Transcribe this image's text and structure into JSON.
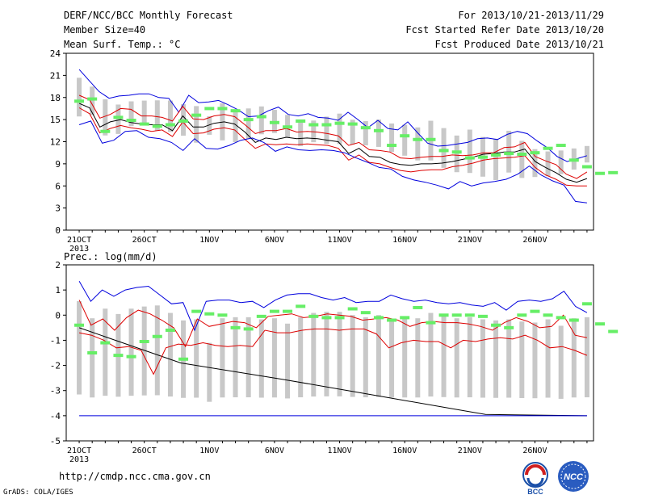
{
  "header": {
    "title": "DERF/NCC/BCC Monthly Forecast",
    "member_size": "Member Size=40",
    "variable": "Mean Surf. Temp.: °C",
    "period": "For 2013/10/21-2013/11/29",
    "started": "Fcst Started Refer Date 2013/10/20",
    "produced": "Fcst Produced Date 2013/10/21"
  },
  "footer": {
    "url": "http://cmdp.ncc.cma.gov.cn",
    "credit": "GrADS: COLA/IGES",
    "logo1_text": "BCC",
    "logo2_text": "NCC"
  },
  "colors": {
    "spread_bar": "#c8c8c8",
    "max_min_line": "#0000dd",
    "mean_line": "#000000",
    "lower_line": "#dd0000",
    "obs_marker": "#66ee66"
  },
  "chart_data": [
    {
      "type": "line",
      "title": "Mean Surf. Temp.: °C",
      "ylim": [
        0,
        24
      ],
      "yticks": [
        0,
        3,
        6,
        9,
        12,
        15,
        18,
        21,
        24
      ],
      "x_tick_labels": [
        "21OCT",
        "26OCT",
        "1NOV",
        "6NOV",
        "11NOV",
        "16NOV",
        "21NOV",
        "26NOV"
      ],
      "x_year_label": "2013",
      "n_days": 40,
      "series": [
        {
          "values": [
            21.8,
            20.3,
            18.8,
            17.9,
            18.2,
            18.3,
            18.5,
            18.5,
            18.0,
            17.9,
            16.0,
            18.3,
            17.3,
            17.4,
            17.6,
            17.0,
            16.3,
            15.4,
            15.5,
            16.2,
            16.7,
            15.7,
            15.5,
            15.8,
            15.3,
            15.2,
            14.9,
            16.0,
            15.0,
            13.9,
            14.9,
            13.8,
            13.6,
            14.7,
            13.2,
            11.8,
            11.4,
            11.5,
            11.7,
            11.9,
            12.4,
            12.5,
            12.3,
            13.0,
            13.4,
            13.1,
            12.1,
            11.2,
            10.0,
            9.3,
            9.7,
            10.1
          ]
        },
        {
          "values": [
            18.3,
            17.7,
            15.2,
            15.7,
            16.5,
            16.4,
            15.5,
            15.5,
            15.3,
            14.8,
            16.8,
            15.1,
            15.0,
            15.5,
            15.7,
            15.4,
            14.3,
            13.1,
            13.5,
            13.5,
            13.8,
            13.3,
            13.4,
            13.3,
            13.1,
            12.8,
            11.5,
            11.9,
            10.9,
            10.8,
            10.6,
            9.8,
            9.7,
            9.9,
            10.0,
            10.0,
            10.2,
            10.1,
            10.2,
            10.5,
            10.5,
            11.2,
            11.3,
            11.9,
            10.0,
            9.4,
            8.9,
            7.6,
            7.0,
            7.9
          ]
        },
        {
          "values": [
            17.2,
            16.6,
            14.0,
            14.7,
            15.0,
            14.6,
            14.4,
            14.3,
            14.3,
            13.5,
            15.5,
            14.0,
            14.0,
            14.5,
            14.7,
            14.4,
            13.3,
            11.9,
            12.5,
            12.3,
            12.6,
            12.4,
            12.5,
            12.4,
            12.2,
            12.0,
            10.4,
            11.1,
            10.0,
            9.9,
            9.2,
            8.9,
            8.8,
            9.0,
            9.0,
            9.1,
            9.3,
            9.6,
            9.9,
            10.3,
            10.4,
            10.6,
            10.6,
            11.0,
            9.3,
            8.5,
            7.8,
            6.9,
            6.5,
            7.0
          ]
        },
        {
          "values": [
            16.6,
            15.8,
            13.2,
            13.8,
            14.2,
            13.9,
            13.7,
            13.4,
            13.6,
            12.7,
            14.7,
            13.1,
            13.2,
            13.7,
            13.9,
            13.6,
            12.3,
            11.1,
            11.7,
            11.6,
            11.7,
            11.6,
            11.7,
            11.6,
            11.5,
            11.1,
            9.5,
            10.2,
            9.2,
            9.0,
            8.5,
            8.1,
            7.9,
            8.1,
            8.2,
            8.2,
            8.6,
            8.8,
            9.1,
            9.5,
            9.7,
            9.8,
            9.9,
            10.1,
            8.5,
            7.5,
            6.9,
            6.1,
            6.0,
            6.0
          ]
        },
        {
          "values": [
            14.3,
            14.8,
            11.8,
            12.2,
            13.4,
            13.5,
            12.6,
            12.4,
            11.9,
            10.8,
            12.4,
            11.1,
            11.0,
            11.5,
            12.2,
            12.5,
            11.9,
            10.7,
            11.3,
            10.9,
            10.8,
            10.9,
            10.8,
            10.5,
            9.8,
            9.2,
            8.5,
            8.3,
            7.3,
            6.8,
            6.5,
            6.1,
            5.6,
            6.6,
            6.0,
            6.4,
            6.6,
            6.9,
            7.6,
            8.7,
            7.5,
            6.7,
            6.1,
            3.9,
            3.7
          ]
        },
        {
          "values": [
            17.5,
            17.8,
            13.4,
            15.3,
            14.9,
            14.4,
            14.1,
            14.3,
            14.8,
            15.6,
            16.5,
            16.5,
            16.2,
            15.0,
            15.4,
            14.6,
            14.0,
            14.8,
            14.3,
            14.3,
            14.5,
            14.4,
            13.9,
            13.5,
            11.5,
            12.8,
            12.3,
            12.3,
            10.8,
            10.6,
            9.8,
            9.9,
            10.2,
            10.4,
            10.3,
            10.5,
            11.1,
            11.5,
            9.5,
            8.6,
            7.7,
            7.8
          ]
        }
      ]
    },
    {
      "type": "line",
      "title": "Prec.: log(mm/d)",
      "ylim": [
        -5,
        2
      ],
      "yticks": [
        -5,
        -4,
        -3,
        -2,
        -1,
        0,
        1,
        2
      ],
      "x_tick_labels": [
        "21OCT",
        "26OCT",
        "1NOV",
        "6NOV",
        "11NOV",
        "16NOV",
        "21NOV",
        "26NOV"
      ],
      "x_year_label": "2013",
      "n_days": 40,
      "series": [
        {
          "values": [
            1.35,
            0.55,
            1.0,
            0.75,
            1.0,
            1.1,
            1.15,
            0.8,
            0.45,
            0.5,
            -0.6,
            0.55,
            0.6,
            0.6,
            0.5,
            0.55,
            0.3,
            0.6,
            0.8,
            0.85,
            0.85,
            0.7,
            0.6,
            0.7,
            0.5,
            0.55,
            0.55,
            0.8,
            0.65,
            0.55,
            0.6,
            0.5,
            0.45,
            0.5,
            0.4,
            0.35,
            0.5,
            0.2,
            0.55,
            0.6,
            0.55,
            0.65,
            0.95,
            0.35,
            0.1
          ]
        },
        {
          "values": [
            0.6,
            -0.4,
            -0.15,
            -0.6,
            -0.1,
            0.2,
            0.05,
            -0.2,
            -0.5,
            -1.25,
            -0.15,
            -0.45,
            -0.35,
            -0.25,
            -0.3,
            -0.5,
            -0.05,
            0.0,
            0.05,
            -0.1,
            -0.05,
            0.05,
            0.0,
            -0.05,
            -0.2,
            -0.15,
            -0.1,
            -0.2,
            -0.45,
            -0.3,
            -0.25,
            -0.3,
            -0.3,
            -0.35,
            -0.45,
            -0.6,
            -0.3,
            -0.1,
            -0.25,
            -0.5,
            -0.45,
            0.0,
            -0.8,
            -0.9
          ]
        },
        {
          "values": [
            -0.5,
            -1.9,
            -2.55,
            -3.25,
            -3.95,
            -4.0
          ]
        },
        {
          "values": [
            -0.7,
            -0.8,
            -1.0,
            -1.3,
            -1.25,
            -1.4,
            -2.35,
            -1.3,
            -1.15,
            -1.2,
            -1.1,
            -1.2,
            -1.25,
            -1.2,
            -1.25,
            -0.6,
            -0.7,
            -0.7,
            -0.6,
            -0.55,
            -0.55,
            -0.6,
            -0.55,
            -0.55,
            -0.75,
            -1.3,
            -1.1,
            -1.0,
            -1.05,
            -1.05,
            -1.3,
            -1.0,
            -1.05,
            -0.95,
            -0.9,
            -0.95,
            -0.8,
            -1.0,
            -1.3,
            -1.25,
            -1.4,
            -1.6
          ]
        },
        {
          "values": [
            -4.0
          ]
        },
        {
          "values": [
            -0.4,
            -1.5,
            -1.1,
            -1.6,
            -1.65,
            -1.05,
            -0.85,
            -0.6,
            -1.75,
            0.15,
            0.05,
            0.0,
            -0.5,
            -0.55,
            -0.05,
            0.15,
            0.15,
            0.35,
            -0.05,
            -0.1,
            -0.1,
            0.25,
            0.1,
            -0.1,
            -0.2,
            -0.1,
            0.3,
            -0.3,
            0.0,
            0.0,
            0.0,
            -0.05,
            -0.4,
            -0.5,
            0.0,
            0.15,
            0.0,
            -0.1,
            -0.2,
            0.45,
            -0.35,
            -0.65
          ]
        }
      ]
    }
  ]
}
